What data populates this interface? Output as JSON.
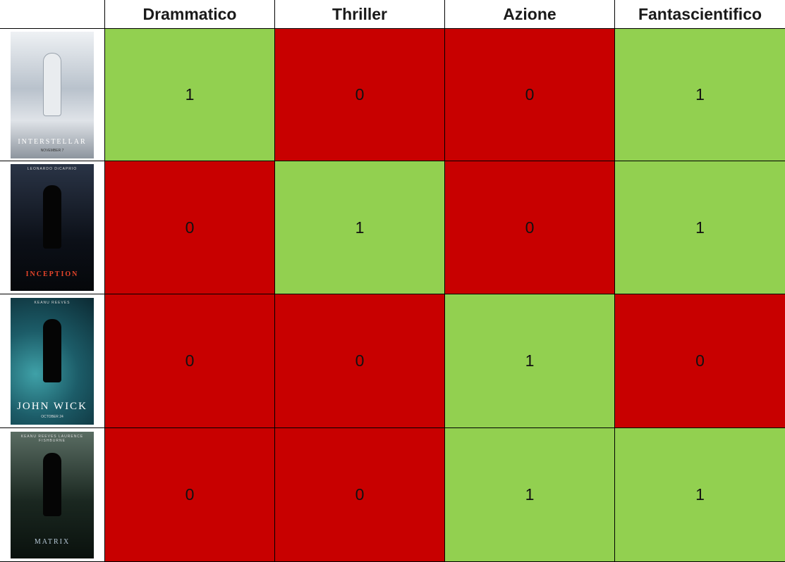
{
  "table": {
    "headers": [
      "",
      "Drammatico",
      "Thriller",
      "Azione",
      "Fantascientifico"
    ],
    "rows": [
      {
        "poster": {
          "title": "INTERSTELLAR",
          "top_text": "",
          "bottom_text": "NOVEMBER 7",
          "bg": "#c9cfd6",
          "fg": "#ffffff",
          "icon": "astronaut-poster-image"
        },
        "values": [
          "1",
          "0",
          "0",
          "1"
        ],
        "states": [
          1,
          0,
          0,
          1
        ]
      },
      {
        "poster": {
          "title": "INCEPTION",
          "top_text": "LEONARDO DiCAPRIO",
          "bottom_text": "",
          "bg": "#10141c",
          "fg": "#e8452a",
          "icon": "city-poster-image"
        },
        "values": [
          "0",
          "1",
          "0",
          "1"
        ],
        "states": [
          0,
          1,
          0,
          1
        ]
      },
      {
        "poster": {
          "title": "JOHN WICK",
          "top_text": "KEANU REEVES",
          "bottom_text": "OCTOBER 24",
          "bg": "#1f6f7a",
          "fg": "#ffffff",
          "icon": "gunman-poster-image"
        },
        "values": [
          "0",
          "0",
          "1",
          "0"
        ],
        "states": [
          0,
          0,
          1,
          0
        ]
      },
      {
        "poster": {
          "title": "MATRIX",
          "top_text": "KEANU REEVES  LAURENCE FISHBURNE",
          "bottom_text": "",
          "bg": "#1c2a24",
          "fg": "#b7c9d8",
          "icon": "group-poster-image"
        },
        "values": [
          "0",
          "0",
          "1",
          "1"
        ],
        "states": [
          0,
          0,
          1,
          1
        ]
      }
    ]
  },
  "colors": {
    "positive": "#92d050",
    "negative": "#c80000"
  }
}
